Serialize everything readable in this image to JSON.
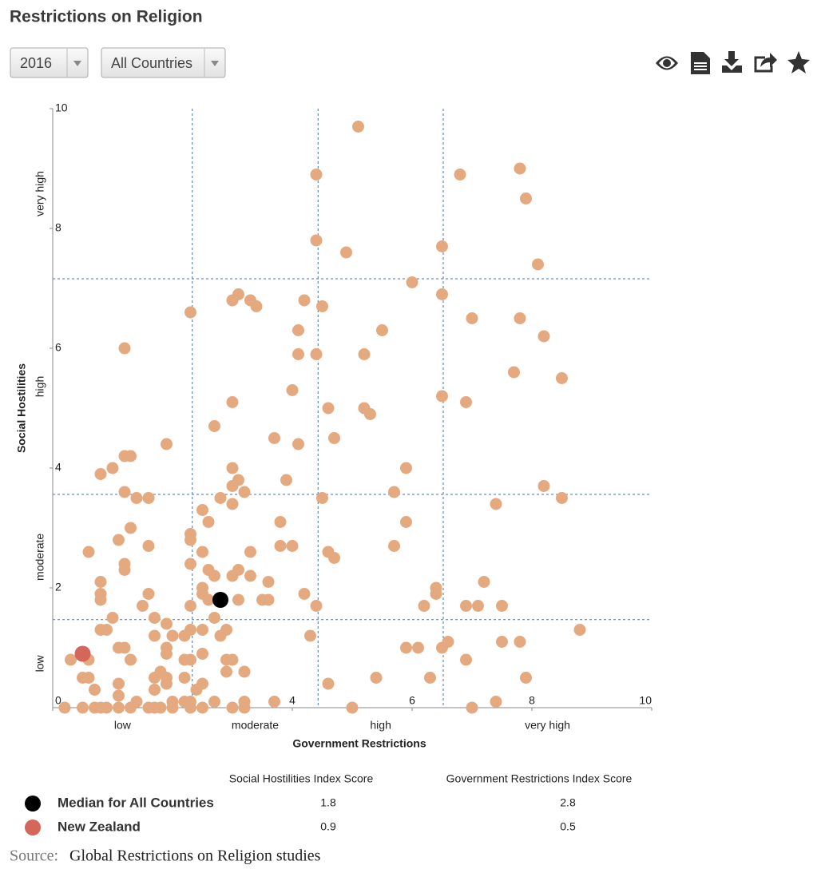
{
  "chart_data": {
    "type": "scatter",
    "title": "Restrictions on Religion",
    "xlabel": "Government Restrictions",
    "ylabel": "Social Hostilities",
    "x_categories": [
      "low",
      "moderate",
      "high",
      "very high"
    ],
    "y_categories": [
      "low",
      "moderate",
      "high",
      "very high"
    ],
    "x_thresholds": [
      2.33,
      4.43,
      6.52
    ],
    "y_thresholds": [
      1.47,
      3.56,
      7.16
    ],
    "xlim": [
      0,
      10
    ],
    "ylim": [
      0,
      10
    ],
    "xticks": [
      0,
      4,
      6,
      8,
      10
    ],
    "yticks": [
      2,
      4,
      6,
      8,
      10
    ],
    "legend_columns": [
      "Social Hostilities Index Score",
      "Government Restrictions Index Score"
    ],
    "series": [
      {
        "color": "#e5a97f",
        "x": [
          5.1,
          4.4,
          6.8,
          7.8,
          7.9,
          4.4,
          4.9,
          6.5,
          8.1,
          6.0,
          2.3,
          3.1,
          3.0,
          3.3,
          3.4,
          4.2,
          4.5,
          6.5,
          7.0,
          7.8,
          4.1,
          5.5,
          1.2,
          4.1,
          4.4,
          5.2,
          8.2,
          7.7,
          8.5,
          4.0,
          6.5,
          6.9,
          3.0,
          4.6,
          5.2,
          5.3,
          2.7,
          3.7,
          4.7,
          4.1,
          1.9,
          1.2,
          1.3,
          1.0,
          0.8,
          3.0,
          5.9,
          3.1,
          3.9,
          3.0,
          8.2,
          1.2,
          3.2,
          5.7,
          1.4,
          1.6,
          2.8,
          4.5,
          8.5,
          3.0,
          7.4,
          2.5,
          2.6,
          3.8,
          5.9,
          1.3,
          2.3,
          2.3,
          1.1,
          1.6,
          3.8,
          4.0,
          5.7,
          0.6,
          2.5,
          3.3,
          4.6,
          4.7,
          1.2,
          1.2,
          2.3,
          2.6,
          2.7,
          3.1,
          3.0,
          3.3,
          0.8,
          3.6,
          7.2,
          0.8,
          0.8,
          1.6,
          2.5,
          2.5,
          6.4,
          6.4,
          2.6,
          3.1,
          3.5,
          3.6,
          4.2,
          1.5,
          2.3,
          4.4,
          6.2,
          6.9,
          7.1,
          7.5,
          1.0,
          1.7,
          2.7,
          1.9,
          0.8,
          0.9,
          2.3,
          2.5,
          2.9,
          8.8,
          1.7,
          2.0,
          2.2,
          2.8,
          4.3,
          6.6,
          7.5,
          7.8,
          1.1,
          1.2,
          1.9,
          5.9,
          6.1,
          6.5,
          1.9,
          2.5,
          0.3,
          0.6,
          1.3,
          2.2,
          2.3,
          2.9,
          3.0,
          6.9,
          1.8,
          2.9,
          3.2,
          0.5,
          0.6,
          1.7,
          1.9,
          2.2,
          5.4,
          6.3,
          7.9,
          1.1,
          1.9,
          2.5,
          4.6,
          0.7,
          1.7,
          2.4,
          1.1,
          1.4,
          2.0,
          2.2,
          2.3,
          2.7,
          3.2,
          3.7,
          7.4,
          0.2,
          0.5,
          0.7,
          0.8,
          0.9,
          1.1,
          1.3,
          1.6,
          1.7,
          1.8,
          2.0,
          2.3,
          2.5,
          3.0,
          3.2,
          5.0,
          7.0
        ],
        "values": [
          9.7,
          8.9,
          8.9,
          9.0,
          8.5,
          7.8,
          7.6,
          7.7,
          7.4,
          7.1,
          6.6,
          6.9,
          6.8,
          6.8,
          6.7,
          6.8,
          6.7,
          6.9,
          6.5,
          6.5,
          6.3,
          6.3,
          6.0,
          5.9,
          5.9,
          5.9,
          6.2,
          5.6,
          5.5,
          5.3,
          5.2,
          5.1,
          5.1,
          5.0,
          5.0,
          4.9,
          4.7,
          4.5,
          4.5,
          4.4,
          4.4,
          4.2,
          4.2,
          4.0,
          3.9,
          4.0,
          4.0,
          3.8,
          3.8,
          3.7,
          3.7,
          3.6,
          3.6,
          3.6,
          3.5,
          3.5,
          3.5,
          3.5,
          3.5,
          3.4,
          3.4,
          3.3,
          3.1,
          3.1,
          3.1,
          3.0,
          2.9,
          2.8,
          2.8,
          2.7,
          2.7,
          2.7,
          2.7,
          2.6,
          2.6,
          2.6,
          2.6,
          2.5,
          2.4,
          2.3,
          2.4,
          2.3,
          2.2,
          2.3,
          2.2,
          2.2,
          2.1,
          2.1,
          2.1,
          1.9,
          1.8,
          1.9,
          2.0,
          1.9,
          2.0,
          1.9,
          1.8,
          1.8,
          1.8,
          1.8,
          1.9,
          1.7,
          1.7,
          1.7,
          1.7,
          1.7,
          1.7,
          1.7,
          1.5,
          1.5,
          1.5,
          1.4,
          1.3,
          1.3,
          1.3,
          1.3,
          1.3,
          1.3,
          1.2,
          1.2,
          1.2,
          1.2,
          1.2,
          1.1,
          1.1,
          1.1,
          1.0,
          1.0,
          1.0,
          1.0,
          1.0,
          1.0,
          0.9,
          0.9,
          0.8,
          0.8,
          0.8,
          0.8,
          0.8,
          0.8,
          0.8,
          0.8,
          0.6,
          0.6,
          0.6,
          0.5,
          0.5,
          0.5,
          0.5,
          0.5,
          0.5,
          0.5,
          0.5,
          0.4,
          0.4,
          0.4,
          0.4,
          0.3,
          0.3,
          0.3,
          0.2,
          0.1,
          0.1,
          0.1,
          0.1,
          0.1,
          0.1,
          0.1,
          0.1,
          0,
          0,
          0,
          0,
          0,
          0,
          0,
          0,
          0,
          0,
          0,
          0,
          0,
          0,
          0,
          0,
          0
        ]
      },
      {
        "name": "Median for All Countries",
        "color": "#000000",
        "x": [
          2.8
        ],
        "values": [
          1.8
        ]
      },
      {
        "name": "New Zealand",
        "color": "#d4665a",
        "x": [
          0.5
        ],
        "values": [
          0.9
        ]
      }
    ]
  },
  "controls": {
    "year": "2016",
    "region": "All Countries"
  },
  "source": {
    "label": "Source:",
    "text": "Global Restrictions on Religion studies"
  }
}
